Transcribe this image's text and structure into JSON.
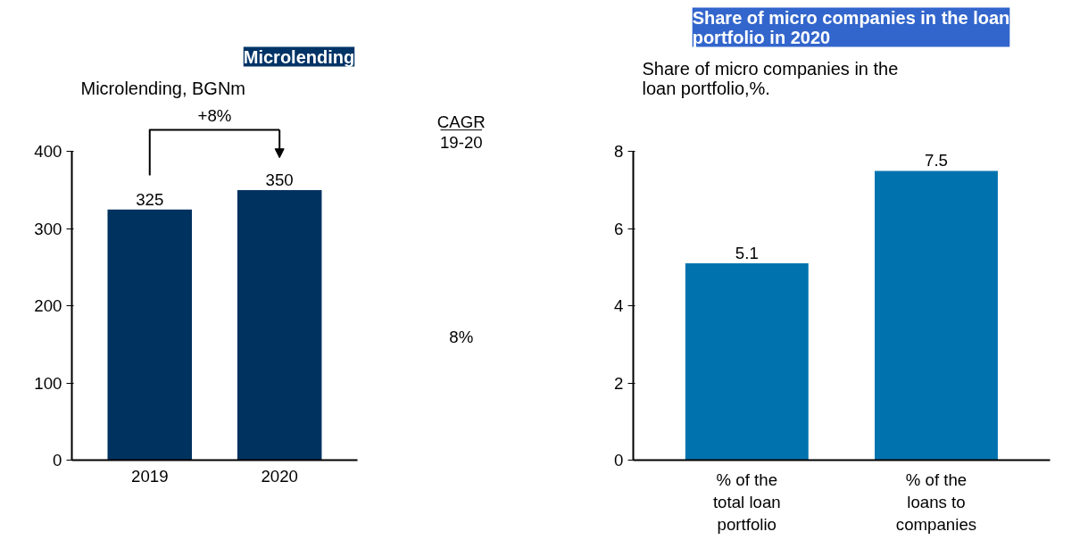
{
  "chart_data": [
    {
      "type": "bar",
      "title": "Microlending",
      "subtitle": "Microlending, BGNm",
      "categories": [
        "2019",
        "2020"
      ],
      "values": [
        325,
        350
      ],
      "color": "#00325f",
      "ylim": [
        0,
        400
      ],
      "yticks": [
        0,
        100,
        200,
        300,
        400
      ],
      "data_labels": true,
      "grid": false,
      "annotations": [
        "+8%",
        "CAGR",
        "19-20",
        "8%"
      ]
    },
    {
      "type": "bar",
      "title": "Share of micro companies in the loan portfolio in 2020",
      "subtitle": "Share of micro companies in the loan portfolio,%.",
      "categories": [
        "% of the total loan portfolio",
        "% of the loans to companies"
      ],
      "values": [
        5.1,
        7.5
      ],
      "color": "#0073ae",
      "ylim": [
        0,
        8
      ],
      "yticks": [
        0,
        2,
        4,
        6,
        8
      ],
      "data_labels": true,
      "grid": false
    }
  ]
}
